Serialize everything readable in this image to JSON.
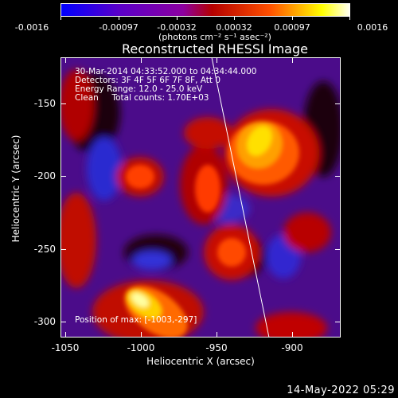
{
  "colorbar": {
    "ticks": [
      "-0.0016",
      "-0.00097",
      "-0.00032",
      "0.00032",
      "0.00097",
      "0.0016"
    ],
    "units": "(photons cm⁻² s⁻¹ asec⁻²)",
    "colors": [
      "#0000ff",
      "#5a00c8",
      "#8c00a0",
      "#b40000",
      "#ff5000",
      "#ffff00",
      "#ffffff"
    ]
  },
  "plot": {
    "title": "Reconstructed RHESSI Image",
    "info": {
      "time": "30-Mar-2014 04:33:52.000 to 04:34:44.000",
      "detectors": "Detectors: 3F 4F 5F 6F 7F 8F, Att 0",
      "energy": "Energy Range: 12.0 - 25.0 keV",
      "clean": "Clean     Total counts: 1.70E+03",
      "position": "Position of max: [-1003,-297]"
    },
    "xlabel": "Heliocentric X (arcsec)",
    "ylabel": "Heliocentric Y (arcsec)",
    "xticks": [
      "-1050",
      "-1000",
      "-950",
      "-900"
    ],
    "yticks": [
      "-150",
      "-200",
      "-250",
      "-300"
    ]
  },
  "footer": {
    "date": "14-May-2022 05:29"
  },
  "chart_data": {
    "type": "heatmap",
    "title": "Reconstructed RHESSI Image",
    "xlabel": "Heliocentric X (arcsec)",
    "ylabel": "Heliocentric Y (arcsec)",
    "xlim": [
      -1052,
      -867
    ],
    "ylim": [
      -313,
      -129
    ],
    "clim": [
      -0.0016,
      0.0016
    ],
    "max_position": [
      -1003,
      -297
    ]
  }
}
